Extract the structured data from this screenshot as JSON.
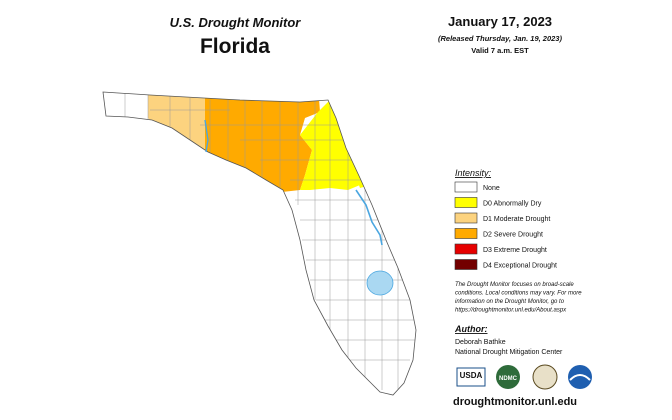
{
  "header": {
    "title": "U.S. Drought Monitor",
    "state": "Florida",
    "date": "January 17, 2023",
    "released": "(Released Thursday, Jan. 19, 2023)",
    "valid": "Valid 7 a.m. EST"
  },
  "legend": {
    "title": "Intensity:",
    "items": [
      {
        "label": "None",
        "color": "#ffffff"
      },
      {
        "label": "D0 Abnormally Dry",
        "color": "#ffff00"
      },
      {
        "label": "D1 Moderate Drought",
        "color": "#fcd37f"
      },
      {
        "label": "D2 Severe Drought",
        "color": "#ffaa00"
      },
      {
        "label": "D3 Extreme Drought",
        "color": "#e60000"
      },
      {
        "label": "D4 Exceptional Drought",
        "color": "#730000"
      }
    ]
  },
  "note": {
    "lines": [
      "The Drought Monitor focuses on broad-scale",
      "conditions. Local conditions may vary. For more",
      "information on the Drought Monitor, go to",
      "https://droughtmonitor.unl.edu/About.aspx"
    ]
  },
  "author": {
    "title": "Author:",
    "name": "Deborah Bathke",
    "organization": "National Drought Mitigation Center"
  },
  "logos": [
    "USDA",
    "NDMC"
  ],
  "footer": {
    "url": "droughtmonitor.unl.edu"
  }
}
